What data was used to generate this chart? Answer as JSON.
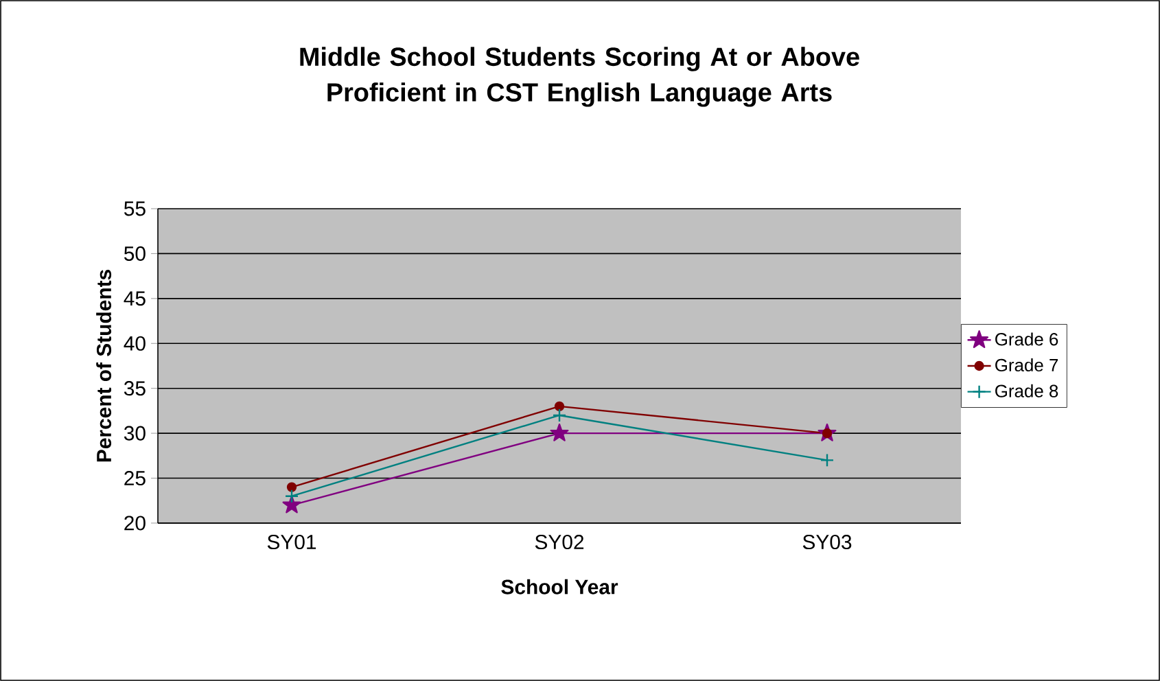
{
  "chart_data": {
    "type": "line",
    "title": "Middle School Students Scoring At or Above Proficient in CST English Language Arts",
    "xlabel": "School Year",
    "ylabel": "Percent of Students",
    "categories": [
      "SY01",
      "SY02",
      "SY03"
    ],
    "series": [
      {
        "name": "Grade 6",
        "color": "#800080",
        "marker": "star",
        "values": [
          22,
          30,
          30
        ]
      },
      {
        "name": "Grade 7",
        "color": "#800000",
        "marker": "circle",
        "values": [
          24,
          33,
          30
        ]
      },
      {
        "name": "Grade 8",
        "color": "#008080",
        "marker": "cross",
        "values": [
          23,
          32,
          27
        ]
      }
    ],
    "ylim": [
      20,
      55
    ],
    "yticks": [
      20,
      25,
      30,
      35,
      40,
      45,
      50,
      55
    ],
    "grid": "y",
    "legend": "right"
  }
}
